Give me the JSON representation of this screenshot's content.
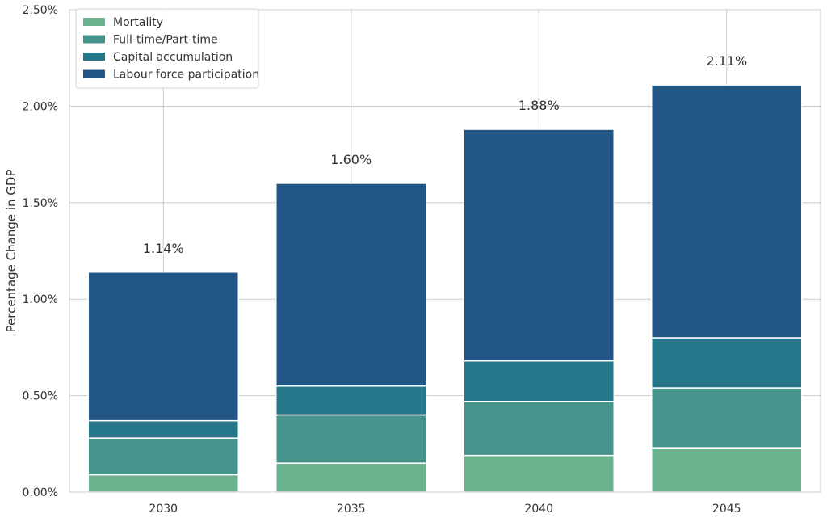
{
  "chart_data": {
    "type": "bar",
    "stacked": true,
    "title": "",
    "xlabel": "",
    "ylabel": "Percentage Change in GDP",
    "categories": [
      "2030",
      "2035",
      "2040",
      "2045"
    ],
    "ylim": [
      0,
      2.5
    ],
    "y_unit": "%",
    "y_ticks": [
      "0.00%",
      "0.50%",
      "1.00%",
      "1.50%",
      "2.00%",
      "2.50%"
    ],
    "grid": true,
    "legend_position": "top-left",
    "series": [
      {
        "name": "Mortality",
        "color": "#6db28f",
        "values": [
          0.09,
          0.15,
          0.19,
          0.23
        ]
      },
      {
        "name": "Full-time/Part-time",
        "color": "#44948c",
        "values": [
          0.19,
          0.25,
          0.28,
          0.31
        ]
      },
      {
        "name": "Capital accumulation",
        "color": "#257789",
        "values": [
          0.09,
          0.15,
          0.21,
          0.26
        ]
      },
      {
        "name": "Labour force participation",
        "color": "#225785",
        "values": [
          0.77,
          1.05,
          1.2,
          1.31
        ]
      }
    ],
    "totals": [
      1.14,
      1.6,
      1.88,
      2.11
    ],
    "total_labels": [
      "1.14%",
      "1.60%",
      "1.88%",
      "2.11%"
    ]
  }
}
